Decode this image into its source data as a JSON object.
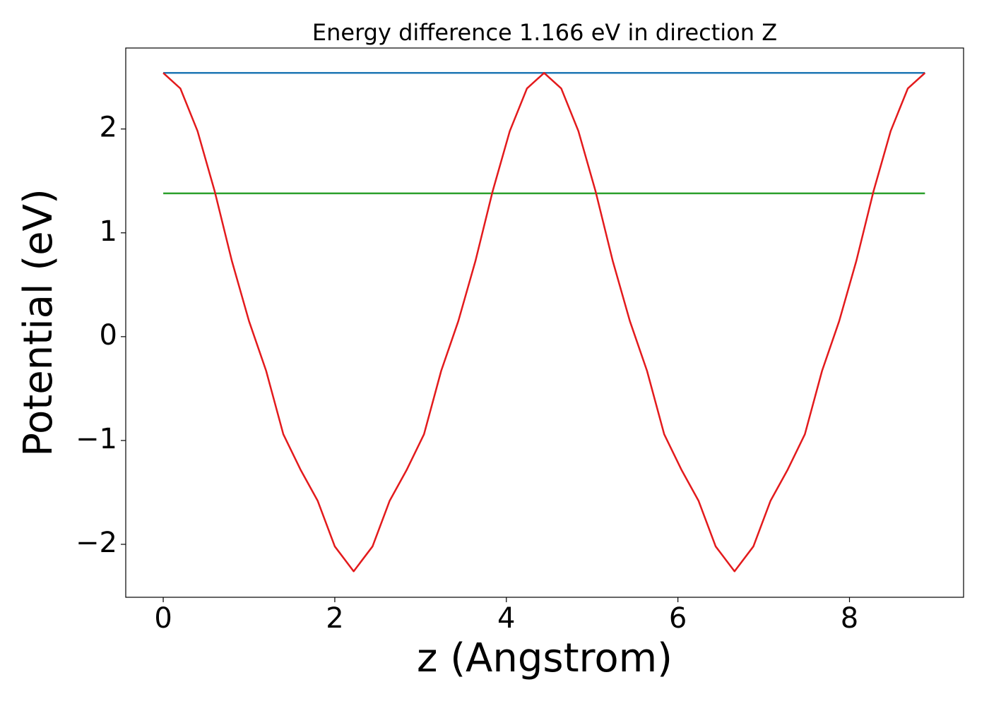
{
  "chart_data": {
    "type": "line",
    "title": "Energy difference 1.166 eV in direction Z",
    "xlabel": "z (Angstrom)",
    "ylabel": "Potential (eV)",
    "xlim": [
      -0.437,
      9.33
    ],
    "ylim": [
      -2.51,
      2.78
    ],
    "xticks": [
      0,
      2,
      4,
      6,
      8
    ],
    "yticks": [
      {
        "value": -2,
        "label": "−2"
      },
      {
        "value": -1,
        "label": "−1"
      },
      0,
      1,
      2
    ],
    "grid": false,
    "series": [
      {
        "color": "#1f77b4",
        "x": [
          0,
          8.88
        ],
        "values": [
          2.54,
          2.54
        ]
      },
      {
        "color": "#2ca02c",
        "x": [
          0,
          8.88
        ],
        "values": [
          1.38,
          1.38
        ]
      },
      {
        "color": "#e31a1c",
        "x": [
          0,
          0.2,
          0.4,
          0.6,
          0.8,
          1.0,
          1.2,
          1.4,
          1.6,
          1.8,
          2.0,
          2.22,
          2.44,
          2.64,
          2.84,
          3.04,
          3.24,
          3.44,
          3.64,
          3.84,
          4.04,
          4.24,
          4.44,
          4.64,
          4.84,
          5.04,
          5.24,
          5.44,
          5.64,
          5.84,
          6.04,
          6.24,
          6.44,
          6.66,
          6.88,
          7.08,
          7.28,
          7.48,
          7.68,
          7.88,
          8.08,
          8.28,
          8.48,
          8.68,
          8.88
        ],
        "values": [
          2.54,
          2.39,
          1.98,
          1.4,
          0.73,
          0.15,
          -0.33,
          -0.94,
          -1.28,
          -1.58,
          -2.02,
          -2.26,
          -2.02,
          -1.58,
          -1.28,
          -0.94,
          -0.33,
          0.15,
          0.73,
          1.4,
          1.98,
          2.39,
          2.54,
          2.39,
          1.98,
          1.4,
          0.73,
          0.15,
          -0.33,
          -0.94,
          -1.28,
          -1.58,
          -2.02,
          -2.26,
          -2.02,
          -1.58,
          -1.28,
          -0.94,
          -0.33,
          0.15,
          0.73,
          1.4,
          1.98,
          2.39,
          2.54
        ]
      }
    ]
  }
}
